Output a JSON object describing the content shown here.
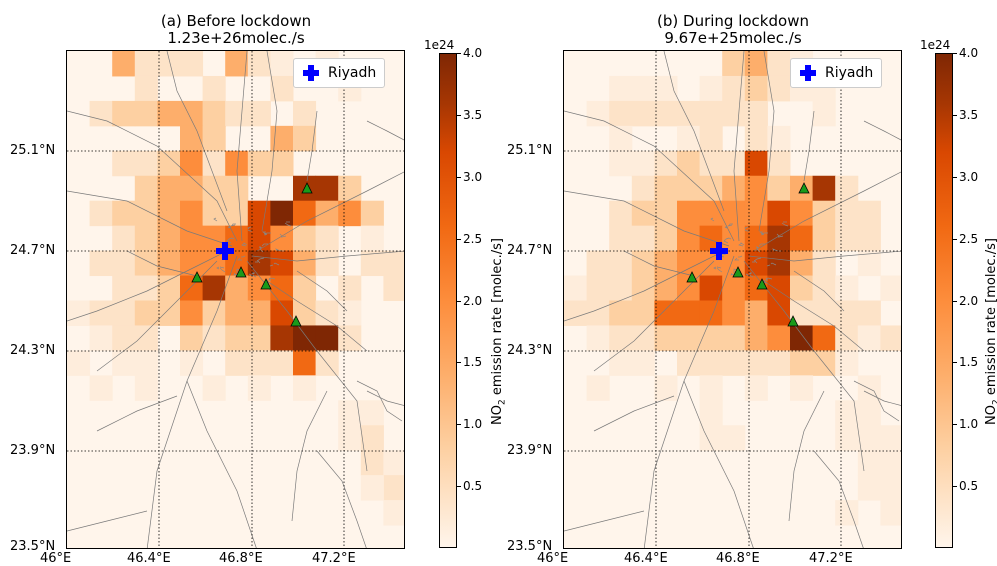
{
  "panels": [
    {
      "title": "(a) Before lockdown",
      "subtitle": "1.23e+26molec./s",
      "legend_label": "Riyadh"
    },
    {
      "title": "(b) During lockdown",
      "subtitle": "9.67e+25molec./s",
      "legend_label": "Riyadh"
    }
  ],
  "axes": {
    "x_ticks": [
      "46°E",
      "46.4°E",
      "46.8°E",
      "47.2°E"
    ],
    "y_ticks": [
      "25.1°N",
      "24.7°N",
      "24.3°N",
      "23.9°N",
      "23.5°N"
    ]
  },
  "colorbar": {
    "exponent": "1e24",
    "label_main": "NO",
    "label_sub": "2",
    "label_rest": " emission rate [molec./s]",
    "ticks": [
      "0.5",
      "1.0",
      "1.5",
      "2.0",
      "2.5",
      "3.0",
      "3.5",
      "4.0"
    ],
    "range": [
      0,
      4.0
    ]
  },
  "colors": {
    "city_marker": "#0000ff",
    "source_marker": "#1a9a1a",
    "colormap": "Oranges"
  }
}
